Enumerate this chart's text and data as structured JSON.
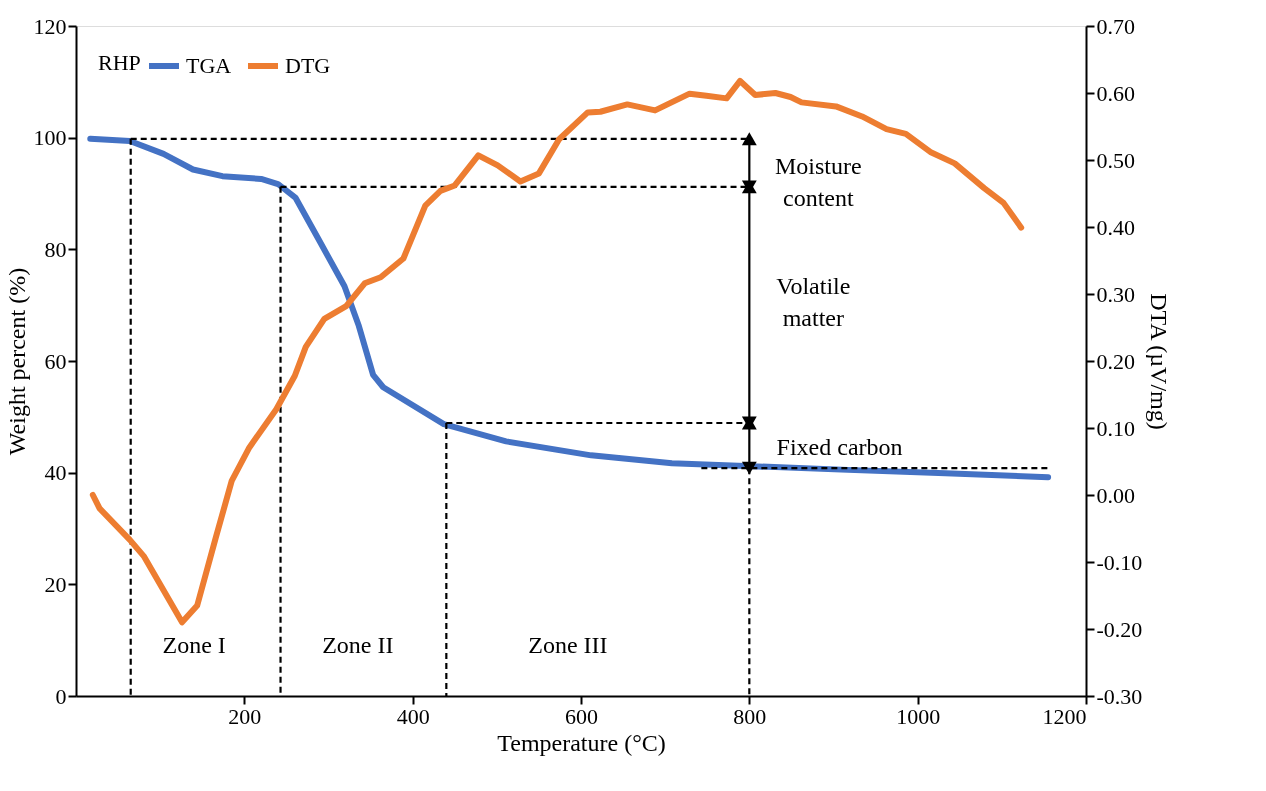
{
  "chart_data": {
    "type": "line",
    "xlabel": "Temperature (°C)",
    "ylabel": "Weight percent (%)",
    "y2label": "DTA (µV/mg)",
    "legend_title": "RHP",
    "legend": "top left",
    "xlim": [
      0,
      1200
    ],
    "xticks": [
      200,
      400,
      600,
      800,
      1000,
      1200
    ],
    "ylim": [
      0,
      120
    ],
    "yticks": [
      0,
      20,
      40,
      60,
      80,
      100,
      120
    ],
    "y2lim": [
      -0.3,
      0.7
    ],
    "y2ticks": [
      {
        "value": -0.3,
        "label": "-0.30"
      },
      {
        "value": -0.2,
        "label": "-0.20"
      },
      {
        "value": -0.1,
        "label": "-0.10"
      },
      {
        "value": 0,
        "label": "0.00"
      },
      {
        "value": 0.1,
        "label": "0.10"
      },
      {
        "value": 0.2,
        "label": "0.20"
      },
      {
        "value": 0.3,
        "label": "0.30"
      },
      {
        "value": 0.4,
        "label": "0.40"
      },
      {
        "value": 0.5,
        "label": "0.50"
      },
      {
        "value": 0.6,
        "label": "0.60"
      },
      {
        "value": 0.7,
        "label": "0.70"
      }
    ],
    "series": [
      {
        "name": "TGA",
        "color": "#4472c4",
        "x": [
          17,
          64,
          104,
          139,
          174,
          220,
          240,
          261,
          290,
          319,
          336,
          353,
          365,
          437,
          511,
          612,
          708,
          795,
          917,
          1033,
          1155
        ],
        "values": [
          99.8,
          99.4,
          97.1,
          94.3,
          93.1,
          92.6,
          91.7,
          89.2,
          81.3,
          73.4,
          66.3,
          57.5,
          55.3,
          48.7,
          45.6,
          43.1,
          41.7,
          41.2,
          40.5,
          39.9,
          39.2
        ]
      },
      {
        "name": "DTG",
        "axis": "y2",
        "color": "#ed7d31",
        "x": [
          20,
          28,
          64,
          81,
          104,
          126,
          144,
          166,
          185,
          206,
          238,
          260,
          273,
          295,
          321,
          343,
          362,
          389,
          415,
          433,
          450,
          478,
          501,
          528,
          550,
          574,
          608,
          623,
          655,
          688,
          729,
          749,
          773,
          789,
          807,
          831,
          849,
          862,
          903,
          934,
          963,
          986,
          1015,
          1044,
          1079,
          1102,
          1123
        ],
        "values": [
          0.0,
          -0.02,
          -0.067,
          -0.092,
          -0.142,
          -0.19,
          -0.165,
          -0.064,
          0.021,
          0.071,
          0.128,
          0.178,
          0.221,
          0.263,
          0.282,
          0.316,
          0.325,
          0.353,
          0.432,
          0.454,
          0.462,
          0.507,
          0.492,
          0.468,
          0.48,
          0.531,
          0.571,
          0.572,
          0.583,
          0.574,
          0.599,
          0.596,
          0.592,
          0.618,
          0.597,
          0.6,
          0.594,
          0.586,
          0.58,
          0.565,
          0.546,
          0.539,
          0.512,
          0.495,
          0.458,
          0.436,
          0.399
        ]
      },
      {
        "type": "line",
        "color": "#000000",
        "line_style": "dashed",
        "x": [
          65,
          800
        ],
        "values": [
          99.8,
          99.8
        ]
      },
      {
        "type": "line",
        "color": "#000000",
        "line_style": "dashed",
        "x": [
          243,
          800
        ],
        "values": [
          91.2,
          91.2
        ]
      },
      {
        "type": "line",
        "color": "#000000",
        "line_style": "dashed",
        "x": [
          440,
          800
        ],
        "values": [
          48.9,
          48.9
        ]
      },
      {
        "type": "line",
        "color": "#000000",
        "line_style": "dashed",
        "x": [
          743,
          1155
        ],
        "values": [
          40.8,
          40.8
        ]
      },
      {
        "type": "line",
        "color": "#000000",
        "line_style": "dashed",
        "x": [
          65,
          65
        ],
        "values": [
          99.8,
          0
        ]
      },
      {
        "type": "line",
        "color": "#000000",
        "line_style": "dashed",
        "x": [
          243,
          243
        ],
        "values": [
          91.2,
          0
        ]
      },
      {
        "type": "line",
        "color": "#000000",
        "line_style": "dashed",
        "x": [
          440,
          440
        ],
        "values": [
          48.9,
          0
        ]
      },
      {
        "type": "line",
        "color": "#000000",
        "line_style": "dashed",
        "x": [
          800,
          800
        ],
        "values": [
          40.8,
          0
        ]
      },
      {
        "type": "line",
        "color": "#000000",
        "line_style": "solid",
        "x": [
          800,
          800
        ],
        "values": [
          99.8,
          40.8
        ]
      },
      {
        "type": "scatter",
        "color": "#000000",
        "marker": "triangle",
        "x": [
          800,
          800,
          800,
          800,
          800,
          800
        ],
        "values": [
          99.8,
          91.2,
          91.2,
          48.9,
          48.9,
          40.8
        ]
      }
    ],
    "annotations": [
      "Moisture\ncontent",
      "Volatile\nmatter",
      "Fixed carbon",
      "Zone I",
      "Zone II",
      "Zone III"
    ]
  }
}
